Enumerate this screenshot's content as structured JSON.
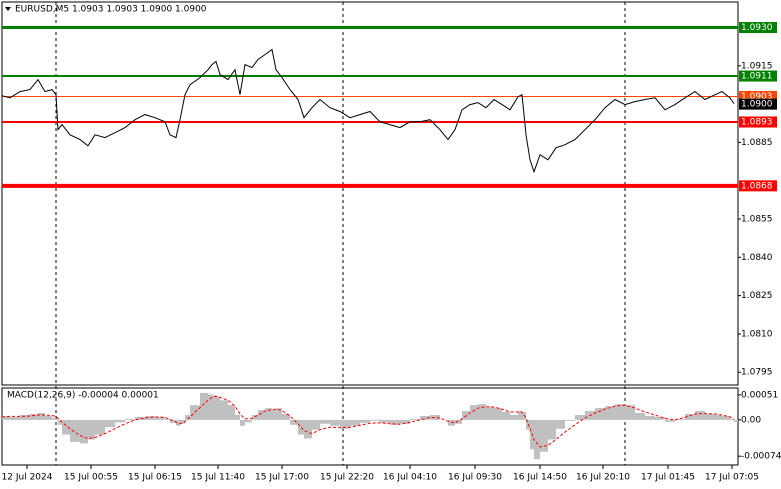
{
  "chart_data": {
    "type": "line",
    "title": "EURUSD,M5  1.0903 1.0903 1.0900 1.0900",
    "x": [
      0,
      8,
      18,
      28,
      36,
      43,
      50,
      54,
      56,
      60,
      68,
      78,
      86,
      93,
      103,
      113,
      123,
      133,
      143,
      153,
      163,
      168,
      174,
      178,
      183,
      188,
      198,
      206,
      210,
      214,
      218,
      226,
      233,
      238,
      243,
      250,
      256,
      263,
      270,
      274,
      280,
      288,
      296,
      302,
      310,
      318,
      328,
      338,
      348,
      358,
      368,
      378,
      388,
      398,
      408,
      418,
      428,
      438,
      446,
      453,
      460,
      468,
      476,
      484,
      492,
      500,
      508,
      516,
      520,
      524,
      528,
      532,
      538,
      546,
      554,
      563,
      573,
      583,
      593,
      603,
      613,
      623,
      633,
      643,
      653,
      663,
      673,
      683,
      693,
      703,
      713,
      720,
      728,
      732
    ],
    "xlim": [
      0,
      736
    ],
    "xticks": [
      {
        "value": 25,
        "label": "12 Jul 2024"
      },
      {
        "value": 89,
        "label": "15 Jul 00:55"
      },
      {
        "value": 153,
        "label": "15 Jul 06:15"
      },
      {
        "value": 216,
        "label": "15 Jul 11:40"
      },
      {
        "value": 280,
        "label": "15 Jul 17:00"
      },
      {
        "value": 345,
        "label": "15 Jul 22:20"
      },
      {
        "value": 408,
        "label": "16 Jul 04:10"
      },
      {
        "value": 473,
        "label": "16 Jul 09:30"
      },
      {
        "value": 538,
        "label": "16 Jul 14:50"
      },
      {
        "value": 601,
        "label": "16 Jul 20:10"
      },
      {
        "value": 666,
        "label": "17 Jul 01:45"
      },
      {
        "value": 730,
        "label": "17 Jul 07:05"
      }
    ],
    "series": [
      {
        "name": "EURUSD",
        "color": "#000000",
        "values": [
          1.09033,
          1.09025,
          1.09049,
          1.09057,
          1.09096,
          1.09049,
          1.09057,
          1.09037,
          1.089,
          1.0892,
          1.0888,
          1.08861,
          1.08837,
          1.0888,
          1.08869,
          1.08888,
          1.08908,
          1.08939,
          1.08959,
          1.08947,
          1.08931,
          1.0888,
          1.08869,
          1.08939,
          1.09037,
          1.09076,
          1.09104,
          1.09135,
          1.09155,
          1.09167,
          1.09116,
          1.09096,
          1.09135,
          1.09037,
          1.09155,
          1.09143,
          1.09175,
          1.09194,
          1.09214,
          1.09135,
          1.09104,
          1.09057,
          1.09018,
          1.08947,
          1.08986,
          1.09018,
          1.08986,
          1.08971,
          1.08947,
          1.08959,
          1.08971,
          1.08931,
          1.0892,
          1.08908,
          1.08931,
          1.08931,
          1.08939,
          1.089,
          1.08861,
          1.089,
          1.08978,
          1.08998,
          1.09006,
          1.08986,
          1.09018,
          1.08998,
          1.08978,
          1.09029,
          1.09037,
          1.0888,
          1.08782,
          1.08735,
          1.08802,
          1.08782,
          1.08829,
          1.08841,
          1.08861,
          1.089,
          1.08939,
          1.08986,
          1.09018,
          1.08998,
          1.0901,
          1.09018,
          1.09025,
          1.08978,
          1.08998,
          1.09025,
          1.09049,
          1.09018,
          1.09037,
          1.09049,
          1.09025,
          1.09002
        ]
      }
    ],
    "ylim": [
      1.079,
      1.094
    ],
    "yticks": [
      1.0915,
      1.0885,
      1.0855,
      {
        "value": 1.084,
        "label": "1.0840"
      },
      1.0825,
      {
        "value": 1.081,
        "label": "1.0810"
      },
      1.0795
    ],
    "levels": [
      {
        "value": 1.093,
        "label": "1.0930",
        "color": "#008000",
        "style": "thick",
        "line": true
      },
      {
        "value": 1.0911,
        "label": "1.0911",
        "color": "#008000",
        "style": "medium",
        "line": true
      },
      {
        "value": 1.0903,
        "label": "1.0903",
        "color": "#ff4500",
        "style": "thin",
        "line": true
      },
      {
        "value": 1.09,
        "label": "1.0900",
        "color": "#000000",
        "style": "thin",
        "line": false
      },
      {
        "value": 1.0893,
        "label": "1.0893",
        "color": "#ff0000",
        "style": "medium",
        "line": true
      },
      {
        "value": 1.0868,
        "label": "1.0868",
        "color": "#ff0000",
        "style": "heavy",
        "line": true
      }
    ],
    "macd": {
      "label": "MACD(12,26,9) -0.00004 0.00001",
      "ylim": [
        -0.00092,
        0.00065
      ],
      "yticks": [
        0.00051,
        {
          "value": 0,
          "label": "0.00"
        },
        -0.00074
      ],
      "histogram": {
        "color": "#c0c0c0",
        "values": [
          8e-05,
          6e-05,
          0.0001,
          0.00012,
          0.00014,
          8e-05,
          4e-05,
          2e-05,
          -0.0001,
          -0.0003,
          -0.00045,
          -0.00048,
          -0.0004,
          -0.0003,
          -0.00015,
          -5e-05,
          2e-05,
          6e-05,
          8e-05,
          6e-05,
          2e-05,
          -6e-05,
          -0.00012,
          -8e-05,
          0.0001,
          0.0003,
          0.00055,
          0.00052,
          0.0005,
          0.00048,
          0.0004,
          0.0003,
          0.0001,
          -0.00012,
          -5e-05,
          0.0001,
          0.0002,
          0.00024,
          0.00022,
          0.00024,
          0.00012,
          -0.0001,
          -0.0003,
          -0.00038,
          -0.0002,
          -8e-05,
          -0.00012,
          -0.00018,
          -0.00012,
          -6e-05,
          -2e-05,
          -6e-05,
          -0.0001,
          -8e-05,
          2e-05,
          8e-05,
          0.0001,
          0,
          -0.00012,
          -8e-05,
          0.00018,
          0.0003,
          0.00032,
          0.00026,
          0.00024,
          0.00016,
          0.0001,
          0.00018,
          0.00016,
          -0.0002,
          -0.0006,
          -0.0008,
          -0.00065,
          -0.0004,
          -0.00018,
          -2e-05,
          0.0001,
          0.00018,
          0.00024,
          0.00028,
          0.00032,
          0.0003,
          0.00014,
          8e-05,
          6e-05,
          -4e-05,
          2e-05,
          0.00012,
          0.00018,
          0.00012,
          0.0001,
          8e-05,
          2e-05,
          -4e-05
        ]
      },
      "signal": {
        "color": "#ff0000",
        "values": [
          6e-05,
          7e-05,
          7e-05,
          8e-05,
          0.0001,
          0.0001,
          9e-05,
          7e-05,
          3e-05,
          -5e-05,
          -0.00018,
          -0.00032,
          -0.00038,
          -0.00036,
          -0.00028,
          -0.00018,
          -8e-05,
          0,
          4e-05,
          6e-05,
          5e-05,
          1e-05,
          -5e-05,
          -8e-05,
          -4e-05,
          6e-05,
          0.00025,
          0.0004,
          0.00046,
          0.00048,
          0.00046,
          0.0004,
          0.00028,
          0.00012,
          2e-05,
          3e-05,
          0.0001,
          0.00018,
          0.00021,
          0.00022,
          0.00019,
          8e-05,
          -8e-05,
          -0.00022,
          -0.00028,
          -0.0002,
          -0.00015,
          -0.00016,
          -0.00015,
          -0.00011,
          -7e-05,
          -6e-05,
          -8e-05,
          -9e-05,
          -5e-05,
          0,
          5e-05,
          4e-05,
          -3e-05,
          -6e-05,
          2e-05,
          0.00014,
          0.00024,
          0.00027,
          0.00026,
          0.00022,
          0.00016,
          0.00016,
          0.00016,
          4e-05,
          -0.00018,
          -0.0004,
          -0.00055,
          -0.00052,
          -0.0004,
          -0.00025,
          -0.0001,
          4e-05,
          0.00014,
          0.00022,
          0.00028,
          0.0003,
          0.00024,
          0.00016,
          0.0001,
          3e-05,
          0,
          5e-05,
          0.00012,
          0.00013,
          0.00012,
          0.0001,
          6e-05,
          1e-05
        ]
      }
    }
  }
}
